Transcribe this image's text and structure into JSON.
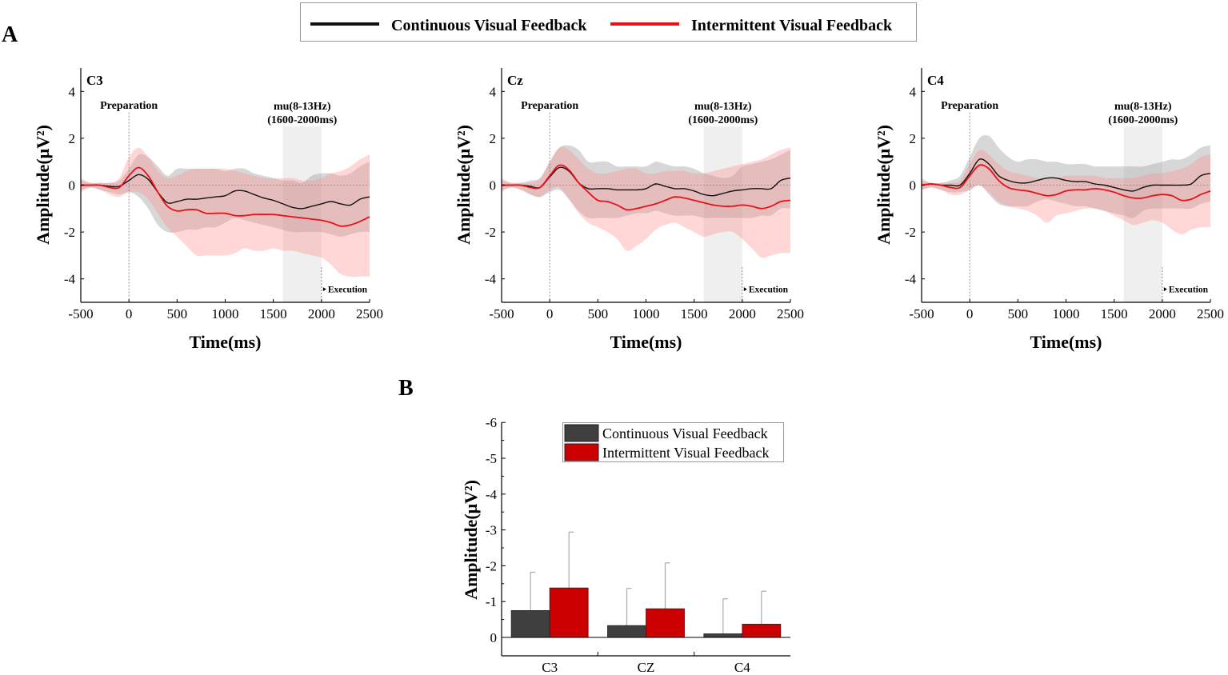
{
  "colors": {
    "continuous": "#111111",
    "intermittent": "#e8101a",
    "continuous_bar": "#3f3f3f",
    "intermittent_bar": "#cc0000"
  },
  "panel_a_label": "A",
  "panel_b_label": "B",
  "legend": {
    "continuous": "Continuous Visual Feedback",
    "intermittent": "Intermittent Visual Feedback"
  },
  "chart_data": [
    {
      "type": "line",
      "title": "C3",
      "xlabel": "Time(ms)",
      "ylabel": "Amplitude(μV²)",
      "xlim": [
        -500,
        2500
      ],
      "ylim": [
        -5,
        5
      ],
      "xticks": [
        "-500",
        "0",
        "500",
        "1000",
        "1500",
        "2000",
        "2500"
      ],
      "yticks": [
        "4",
        "2",
        "0",
        "-2",
        "-4"
      ],
      "annotations": {
        "preparation": "Preparation",
        "mu_line1": "mu(8-13Hz)",
        "mu_line2": "(1600-2000ms)",
        "execution": "Execution",
        "mu_window": [
          1600,
          2000
        ]
      },
      "x": [
        -500,
        -400,
        -300,
        -200,
        -100,
        0,
        100,
        200,
        300,
        400,
        500,
        600,
        700,
        800,
        900,
        1000,
        1100,
        1200,
        1300,
        1400,
        1500,
        1600,
        1700,
        1800,
        1900,
        2000,
        2100,
        2200,
        2300,
        2400,
        2500
      ],
      "series": [
        {
          "name": "Continuous Visual Feedback",
          "mean": [
            0,
            0,
            0,
            -0.05,
            -0.05,
            0.2,
            0.45,
            0.25,
            -0.3,
            -0.75,
            -0.7,
            -0.6,
            -0.6,
            -0.55,
            -0.5,
            -0.45,
            -0.25,
            -0.25,
            -0.4,
            -0.55,
            -0.65,
            -0.8,
            -0.95,
            -1.0,
            -0.9,
            -0.8,
            -0.7,
            -0.8,
            -0.85,
            -0.6,
            -0.5
          ],
          "upper": [
            0.2,
            0.1,
            0.1,
            0.1,
            0.2,
            0.7,
            1.3,
            1.2,
            0.8,
            0.4,
            0.7,
            0.7,
            0.7,
            0.7,
            0.7,
            0.6,
            0.7,
            0.7,
            0.5,
            0.4,
            0.3,
            0.2,
            0.2,
            0.1,
            0.4,
            0.5,
            0.5,
            0.4,
            0.5,
            0.8,
            1.0
          ],
          "lower": [
            -0.2,
            -0.1,
            -0.2,
            -0.3,
            -0.4,
            -0.3,
            -0.5,
            -1.0,
            -1.7,
            -2.0,
            -2.0,
            -1.9,
            -1.9,
            -1.8,
            -1.8,
            -1.6,
            -1.4,
            -1.5,
            -1.6,
            -1.7,
            -1.8,
            -1.9,
            -2.0,
            -2.0,
            -2.0,
            -2.0,
            -2.1,
            -2.2,
            -2.1,
            -2.0,
            -2.0
          ]
        },
        {
          "name": "Intermittent Visual Feedback",
          "mean": [
            0,
            0,
            0,
            -0.1,
            -0.1,
            0.4,
            0.75,
            0.4,
            -0.3,
            -0.9,
            -1.1,
            -1.05,
            -1.05,
            -1.2,
            -1.2,
            -1.2,
            -1.3,
            -1.3,
            -1.25,
            -1.25,
            -1.25,
            -1.3,
            -1.35,
            -1.4,
            -1.45,
            -1.5,
            -1.6,
            -1.75,
            -1.7,
            -1.55,
            -1.35
          ],
          "upper": [
            0.3,
            0.1,
            0.1,
            0.1,
            0.3,
            1.2,
            1.6,
            1.2,
            0.6,
            0.3,
            0.4,
            0.6,
            0.7,
            0.7,
            0.7,
            0.7,
            0.6,
            0.5,
            0.4,
            0.3,
            0.3,
            0.3,
            0.3,
            0.2,
            0.2,
            0.3,
            0.5,
            0.6,
            0.8,
            1.1,
            1.3
          ],
          "lower": [
            -0.3,
            -0.1,
            -0.2,
            -0.4,
            -0.5,
            -0.3,
            -0.3,
            -0.6,
            -1.2,
            -1.8,
            -2.2,
            -2.6,
            -3.0,
            -3.0,
            -3.0,
            -3.0,
            -2.9,
            -2.7,
            -2.8,
            -2.8,
            -2.7,
            -2.8,
            -2.8,
            -2.9,
            -3.0,
            -3.1,
            -3.4,
            -3.8,
            -3.9,
            -3.9,
            -3.9
          ]
        }
      ]
    },
    {
      "type": "line",
      "title": "Cz",
      "xlabel": "Time(ms)",
      "ylabel": "Amplitude(μV²)",
      "xlim": [
        -500,
        2500
      ],
      "ylim": [
        -5,
        5
      ],
      "xticks": [
        "-500",
        "0",
        "500",
        "1000",
        "1500",
        "2000",
        "2500"
      ],
      "yticks": [
        "4",
        "2",
        "0",
        "-2",
        "-4"
      ],
      "annotations": {
        "preparation": "Preparation",
        "mu_line1": "mu(8-13Hz)",
        "mu_line2": "(1600-2000ms)",
        "execution": "Execution",
        "mu_window": [
          1600,
          2000
        ]
      },
      "x": [
        -500,
        -400,
        -300,
        -200,
        -100,
        0,
        100,
        200,
        300,
        400,
        500,
        600,
        700,
        800,
        900,
        1000,
        1100,
        1200,
        1300,
        1400,
        1500,
        1600,
        1700,
        1800,
        1900,
        2000,
        2100,
        2200,
        2300,
        2400,
        2500
      ],
      "series": [
        {
          "name": "Continuous Visual Feedback",
          "mean": [
            0,
            0,
            0,
            -0.05,
            -0.1,
            0.35,
            0.75,
            0.6,
            0.1,
            -0.15,
            -0.15,
            -0.15,
            -0.2,
            -0.2,
            -0.2,
            -0.15,
            0.05,
            -0.05,
            -0.15,
            -0.15,
            -0.25,
            -0.4,
            -0.45,
            -0.35,
            -0.25,
            -0.2,
            -0.15,
            -0.15,
            -0.15,
            0.2,
            0.3
          ],
          "upper": [
            0.2,
            0.1,
            0.1,
            0.2,
            0.3,
            1.0,
            1.6,
            1.7,
            1.5,
            1.0,
            1.0,
            1.0,
            0.8,
            0.8,
            0.8,
            0.8,
            1.0,
            0.9,
            0.8,
            0.8,
            0.7,
            0.5,
            0.4,
            0.3,
            0.4,
            0.8,
            0.9,
            1.0,
            1.1,
            1.3,
            1.5
          ],
          "lower": [
            -0.2,
            -0.1,
            -0.2,
            -0.4,
            -0.5,
            -0.3,
            -0.2,
            -0.6,
            -1.1,
            -1.4,
            -1.4,
            -1.4,
            -1.4,
            -1.3,
            -1.2,
            -1.2,
            -1.1,
            -1.2,
            -1.3,
            -1.3,
            -1.3,
            -1.4,
            -1.4,
            -1.4,
            -1.4,
            -1.4,
            -1.4,
            -1.3,
            -1.3,
            -1.0,
            -1.0
          ]
        },
        {
          "name": "Intermittent Visual Feedback",
          "mean": [
            0,
            0,
            0,
            -0.1,
            -0.1,
            0.4,
            0.85,
            0.65,
            0.1,
            -0.3,
            -0.65,
            -0.7,
            -0.85,
            -1.05,
            -1.0,
            -0.9,
            -0.8,
            -0.65,
            -0.5,
            -0.55,
            -0.65,
            -0.75,
            -0.85,
            -0.9,
            -0.9,
            -0.85,
            -0.9,
            -1.0,
            -0.9,
            -0.7,
            -0.65
          ],
          "upper": [
            0.3,
            0.1,
            0.1,
            0.1,
            0.3,
            1.0,
            1.6,
            1.5,
            1.1,
            0.7,
            0.5,
            0.5,
            0.6,
            0.7,
            0.7,
            0.5,
            0.5,
            0.6,
            0.6,
            0.6,
            0.5,
            0.5,
            0.6,
            0.7,
            0.8,
            0.9,
            1.0,
            1.1,
            1.3,
            1.5,
            1.6
          ],
          "lower": [
            -0.3,
            -0.1,
            -0.2,
            -0.4,
            -0.5,
            -0.2,
            -0.1,
            -0.6,
            -1.2,
            -1.6,
            -1.8,
            -2.0,
            -2.3,
            -2.8,
            -2.6,
            -2.3,
            -1.9,
            -1.7,
            -1.6,
            -1.8,
            -2.0,
            -2.2,
            -2.1,
            -2.0,
            -2.0,
            -2.3,
            -2.7,
            -3.1,
            -3.0,
            -2.9,
            -2.9
          ]
        }
      ]
    },
    {
      "type": "line",
      "title": "C4",
      "xlabel": "Time(ms)",
      "ylabel": "Amplitude(μV²)",
      "xlim": [
        -500,
        2500
      ],
      "ylim": [
        -5,
        5
      ],
      "xticks": [
        "-500",
        "0",
        "500",
        "1000",
        "1500",
        "2000",
        "2500"
      ],
      "yticks": [
        "4",
        "2",
        "0",
        "-2",
        "-4"
      ],
      "annotations": {
        "preparation": "Preparation",
        "mu_line1": "mu(8-13Hz)",
        "mu_line2": "(1600-2000ms)",
        "execution": "Execution",
        "mu_window": [
          1600,
          2000
        ]
      },
      "x": [
        -500,
        -400,
        -300,
        -200,
        -100,
        0,
        100,
        200,
        300,
        400,
        500,
        600,
        700,
        800,
        900,
        1000,
        1100,
        1200,
        1300,
        1400,
        1500,
        1600,
        1700,
        1800,
        1900,
        2000,
        2100,
        2200,
        2300,
        2400,
        2500
      ],
      "series": [
        {
          "name": "Continuous Visual Feedback",
          "mean": [
            0,
            0.05,
            0,
            0,
            0,
            0.5,
            1.1,
            0.9,
            0.4,
            0.2,
            0.1,
            0.1,
            0.2,
            0.3,
            0.3,
            0.2,
            0.15,
            0.15,
            0.05,
            0,
            -0.1,
            -0.2,
            -0.25,
            -0.1,
            0,
            0,
            0,
            0,
            0.05,
            0.4,
            0.5
          ],
          "upper": [
            0.2,
            0.1,
            0.1,
            0.2,
            0.4,
            1.2,
            2.0,
            2.1,
            1.6,
            1.2,
            1.0,
            1.1,
            1.1,
            1.0,
            1.0,
            0.9,
            0.9,
            0.9,
            0.8,
            0.8,
            0.8,
            0.8,
            0.8,
            0.8,
            0.9,
            1.0,
            1.1,
            1.1,
            1.3,
            1.6,
            1.7
          ],
          "lower": [
            -0.2,
            -0.1,
            -0.2,
            -0.3,
            -0.3,
            -0.2,
            0.0,
            -0.4,
            -0.8,
            -0.9,
            -0.9,
            -0.9,
            -0.7,
            -0.6,
            -0.7,
            -0.8,
            -0.9,
            -0.9,
            -1.0,
            -1.1,
            -1.2,
            -1.3,
            -1.4,
            -1.1,
            -1.0,
            -1.0,
            -1.0,
            -1.0,
            -1.0,
            -0.8,
            -0.7
          ]
        },
        {
          "name": "Intermittent Visual Feedback",
          "mean": [
            0,
            0.05,
            0,
            -0.1,
            -0.1,
            0.4,
            0.85,
            0.7,
            0.2,
            -0.1,
            -0.2,
            -0.25,
            -0.35,
            -0.45,
            -0.4,
            -0.25,
            -0.2,
            -0.2,
            -0.15,
            -0.2,
            -0.3,
            -0.45,
            -0.55,
            -0.55,
            -0.45,
            -0.4,
            -0.45,
            -0.65,
            -0.6,
            -0.4,
            -0.25
          ],
          "upper": [
            0.3,
            0.1,
            0.1,
            0.1,
            0.2,
            0.9,
            1.5,
            1.3,
            0.9,
            0.6,
            0.5,
            0.4,
            0.3,
            0.3,
            0.3,
            0.4,
            0.4,
            0.4,
            0.4,
            0.3,
            0.3,
            0.3,
            0.3,
            0.4,
            0.5,
            0.5,
            0.6,
            0.7,
            0.9,
            1.2,
            1.3
          ],
          "lower": [
            -0.2,
            -0.1,
            -0.2,
            -0.4,
            -0.4,
            -0.2,
            0.0,
            -0.3,
            -0.7,
            -0.9,
            -1.0,
            -1.1,
            -1.3,
            -1.6,
            -1.3,
            -1.2,
            -1.1,
            -1.0,
            -1.0,
            -1.1,
            -1.3,
            -1.5,
            -1.7,
            -1.6,
            -1.5,
            -1.6,
            -1.9,
            -2.1,
            -1.9,
            -1.8,
            -1.8
          ]
        }
      ]
    },
    {
      "type": "bar",
      "title": "",
      "xlabel": "",
      "ylabel": "Amplitude(μV²)",
      "ylim": [
        0.5,
        -6
      ],
      "y_inverted": true,
      "yticks": [
        "-6",
        "-5",
        "-4",
        "-3",
        "-2",
        "-1",
        "0"
      ],
      "categories": [
        "C3",
        "CZ",
        "C4"
      ],
      "legend_position": "top-right",
      "series": [
        {
          "name": "Continuous Visual Feedback",
          "values": [
            -0.75,
            -0.33,
            -0.1
          ],
          "error_to": [
            -1.82,
            -1.37,
            -1.08
          ]
        },
        {
          "name": "Intermittent Visual Feedback",
          "values": [
            -1.38,
            -0.8,
            -0.37
          ],
          "error_to": [
            -2.94,
            -2.08,
            -1.29
          ]
        }
      ]
    }
  ]
}
